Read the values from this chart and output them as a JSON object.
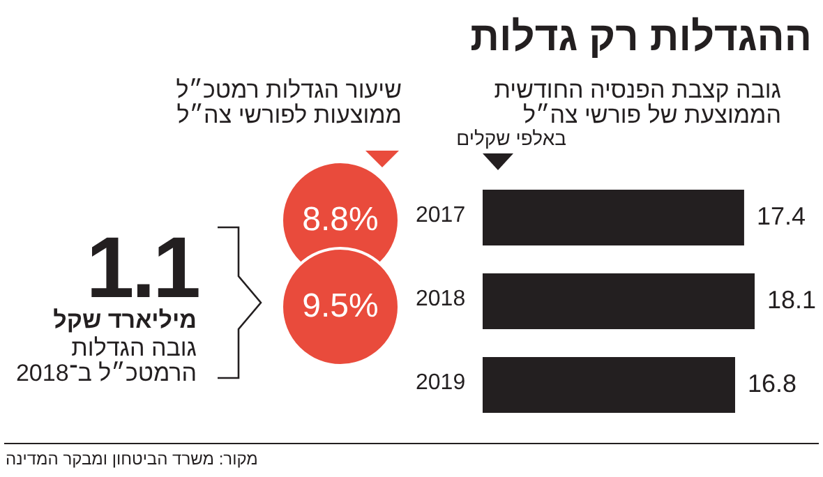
{
  "chart_data": [
    {
      "type": "bar",
      "orientation": "horizontal",
      "title": "ההגדלות רק גדלות",
      "subtitle": "גובה קצבת הפנסיה החודשית הממוצעת של פורשי צה״ל",
      "categories": [
        "2017",
        "2018",
        "2019"
      ],
      "values": [
        17.4,
        18.1,
        16.8
      ],
      "color": "#231f20",
      "data_labels": true,
      "annotations": [
        "באלפי שקלים",
        "מקור: משרד הביטחון ומבקר המדינה"
      ]
    },
    {
      "type": "other",
      "title": "שיעור הגדלות רמטכ״ל ממוצעות לפורשי צה״ל",
      "values": [
        8.8,
        9.5
      ],
      "value_labels": [
        "8.8%",
        "9.5%"
      ],
      "color": "#e94b3c"
    },
    {
      "type": "other",
      "annotations": [
        "1.1",
        "מיליארד שקל",
        "גובה הגדלות הרמטכ״ל ב־2018"
      ]
    }
  ]
}
